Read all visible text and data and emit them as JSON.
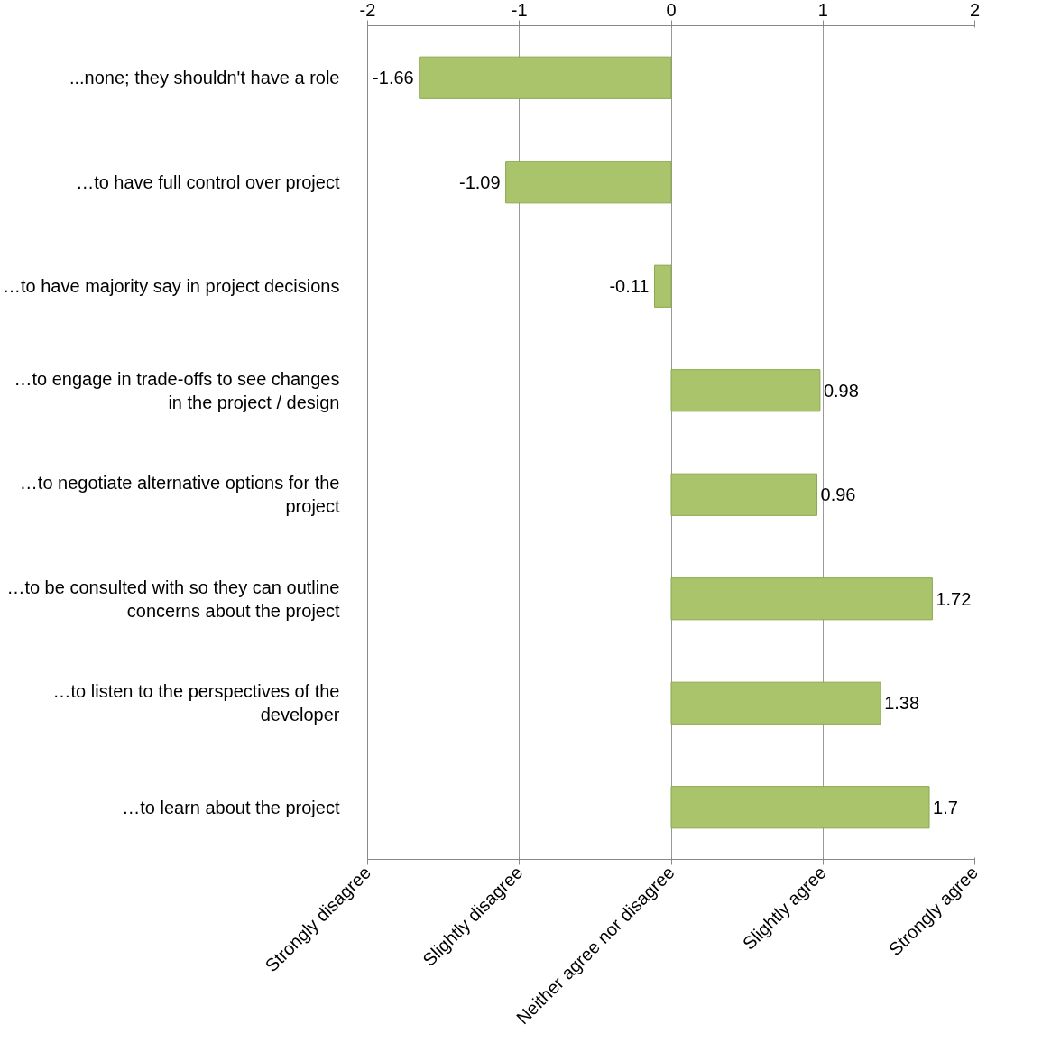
{
  "chart_data": {
    "type": "bar",
    "orientation": "horizontal",
    "categories": [
      "...none; they shouldn't have a role",
      "…to have full control over project",
      "…to have majority say in project decisions",
      "…to engage in trade-offs to see changes\nin the project / design",
      "…to negotiate alternative options for the\nproject",
      "…to be consulted with so they can outline\nconcerns about the project",
      "…to listen to the perspectives of the\ndeveloper",
      "…to learn about the project"
    ],
    "values": [
      -1.66,
      -1.09,
      -0.11,
      0.98,
      0.96,
      1.72,
      1.38,
      1.7
    ],
    "color": "#a9c46a",
    "xlim": [
      -2,
      2
    ],
    "xticks": [
      -2,
      -1,
      0,
      1,
      2
    ],
    "annotations": [
      "Strongly disagree",
      "Slightly disagree",
      "Neither agree nor disagree",
      "Slightly agree",
      "Strongly agree"
    ],
    "grid": "x",
    "data_labels": true
  }
}
